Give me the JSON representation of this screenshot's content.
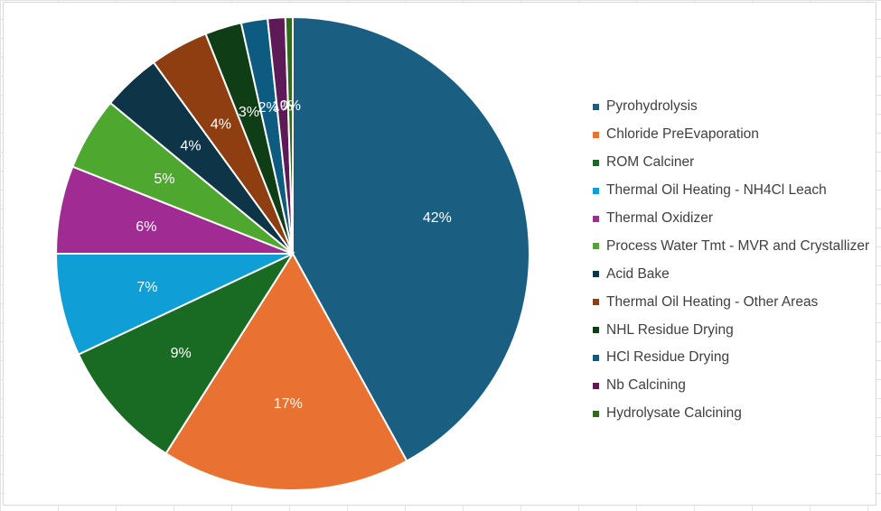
{
  "chart_data": {
    "type": "pie",
    "title": "",
    "start_angle_deg": 0,
    "direction": "clockwise",
    "legend_position": "right",
    "slices": [
      {
        "name": "Pyrohydrolysis",
        "value": 42,
        "label": "42%",
        "color": "#1a5e82"
      },
      {
        "name": "Chloride PreEvaporation",
        "value": 17,
        "label": "17%",
        "color": "#e97132"
      },
      {
        "name": "ROM Calciner",
        "value": 9,
        "label": "9%",
        "color": "#196b24"
      },
      {
        "name": "Thermal Oil Heating - NH4Cl Leach",
        "value": 7,
        "label": "7%",
        "color": "#0f9ed5"
      },
      {
        "name": "Thermal Oxidizer",
        "value": 6,
        "label": "6%",
        "color": "#a02b93"
      },
      {
        "name": "Process Water Tmt - MVR and Crystallizer",
        "value": 5,
        "label": "5%",
        "color": "#4ea72e"
      },
      {
        "name": "Acid Bake",
        "value": 4,
        "label": "4%",
        "color": "#0e3448"
      },
      {
        "name": "Thermal Oil Heating - Other Areas",
        "value": 4,
        "label": "4%",
        "color": "#8e3e10"
      },
      {
        "name": "NHL Residue Drying",
        "value": 2.5,
        "label": "3%",
        "color": "#0f3e16"
      },
      {
        "name": "HCl Residue Drying",
        "value": 1.8,
        "label": "2%",
        "color": "#0d5b80"
      },
      {
        "name": "Nb Calcining",
        "value": 1.2,
        "label": "1%",
        "color": "#5e1a56"
      },
      {
        "name": "Hydrolysate Calcining",
        "value": 0.5,
        "label": "0%",
        "color": "#2f6b1b"
      }
    ]
  }
}
